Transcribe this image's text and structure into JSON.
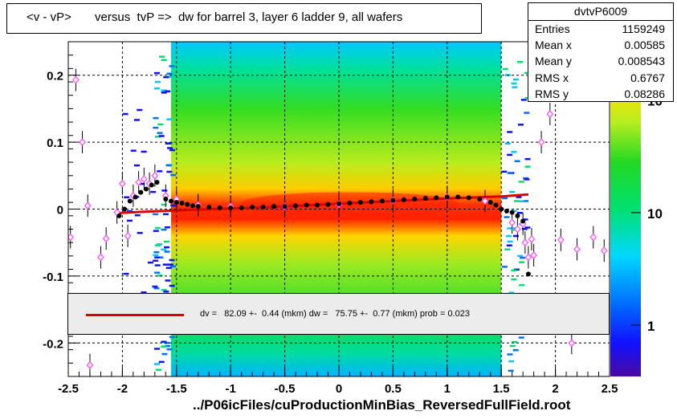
{
  "title": "<v - vP>       versus  tvP =>  dw for barrel 3, layer 6 ladder 9, all wafers",
  "file_label": "../P06icFiles/cuProductionMinBias_ReversedFullField.root",
  "stats": {
    "name": "dvtvP6009",
    "rows": [
      {
        "key": "Entries",
        "value": "1159249"
      },
      {
        "key": "Mean x",
        "value": "0.00585"
      },
      {
        "key": "Mean y",
        "value": "0.008543"
      },
      {
        "key": "RMS x",
        "value": "0.6767"
      },
      {
        "key": "RMS y",
        "value": "0.08286"
      }
    ]
  },
  "fit_text": "dv =   82.09 +-  0.44 (mkm) dw =   75.75 +-  0.77 (mkm) prob = 0.023",
  "colors": {
    "fit_line": "#dd0000",
    "profile": "#000000",
    "alt_profile": "#ff44ff"
  },
  "chart_data": {
    "type": "heatmap",
    "xlim": [
      -2.5,
      2.5
    ],
    "ylim": [
      -0.25,
      0.25
    ],
    "x_ticks": [
      -2.5,
      -2,
      -1.5,
      -1,
      -0.5,
      0,
      0.5,
      1,
      1.5,
      2,
      2.5
    ],
    "x_tick_labels": [
      "-2.5",
      "-2",
      "-1.5",
      "-1",
      "-0.5",
      "0",
      "0.5",
      "1",
      "1.5",
      "2",
      "2.5"
    ],
    "y_ticks": [
      -0.2,
      -0.1,
      0,
      0.1,
      0.2
    ],
    "y_tick_labels": [
      "-0.2",
      "-0.1",
      "0",
      "0.1",
      "0.2"
    ],
    "colorbar_labels": [
      {
        "label": "1",
        "value": 1
      },
      {
        "label": "10",
        "value": 10
      },
      {
        "label": "10",
        "value": 100
      }
    ],
    "grid": true,
    "band_x": [
      -1.55,
      1.5
    ],
    "profile": [
      [
        -2.03,
        -0.01
      ],
      [
        -1.98,
        0.0
      ],
      [
        -1.93,
        0.012
      ],
      [
        -1.88,
        0.018
      ],
      [
        -1.83,
        0.025
      ],
      [
        -1.78,
        0.03
      ],
      [
        -1.73,
        0.036
      ],
      [
        -1.68,
        0.04
      ],
      [
        -1.6,
        0.015
      ],
      [
        -1.55,
        0.012
      ],
      [
        -1.5,
        0.01
      ],
      [
        -1.45,
        0.009
      ],
      [
        -1.4,
        0.007
      ],
      [
        -1.35,
        0.005
      ],
      [
        -1.3,
        0.004
      ],
      [
        -1.2,
        0.003
      ],
      [
        -1.1,
        0.002
      ],
      [
        -1.0,
        0.002
      ],
      [
        -0.9,
        0.002
      ],
      [
        -0.8,
        0.003
      ],
      [
        -0.7,
        0.003
      ],
      [
        -0.6,
        0.004
      ],
      [
        -0.5,
        0.004
      ],
      [
        -0.4,
        0.005
      ],
      [
        -0.3,
        0.006
      ],
      [
        -0.2,
        0.006
      ],
      [
        -0.1,
        0.007
      ],
      [
        0.0,
        0.008
      ],
      [
        0.1,
        0.009
      ],
      [
        0.2,
        0.01
      ],
      [
        0.3,
        0.011
      ],
      [
        0.4,
        0.012
      ],
      [
        0.5,
        0.013
      ],
      [
        0.6,
        0.014
      ],
      [
        0.7,
        0.015
      ],
      [
        0.8,
        0.016
      ],
      [
        0.9,
        0.017
      ],
      [
        1.0,
        0.018
      ],
      [
        1.1,
        0.018
      ],
      [
        1.2,
        0.017
      ],
      [
        1.3,
        0.015
      ],
      [
        1.4,
        0.01
      ],
      [
        1.45,
        0.006
      ],
      [
        1.5,
        0.0
      ],
      [
        1.55,
        -0.003
      ],
      [
        1.6,
        -0.005
      ],
      [
        1.65,
        -0.01
      ],
      [
        1.7,
        -0.018
      ],
      [
        1.75,
        -0.097
      ]
    ],
    "alt_profile": [
      [
        -2.48,
        -0.042
      ],
      [
        -2.43,
        0.193
      ],
      [
        -2.37,
        0.1
      ],
      [
        -2.32,
        0.005
      ],
      [
        -2.3,
        -0.233
      ],
      [
        -2.2,
        -0.072
      ],
      [
        -2.15,
        -0.044
      ],
      [
        -2.05,
        -0.005
      ],
      [
        -2.0,
        0.038
      ],
      [
        -1.95,
        -0.04
      ],
      [
        -1.9,
        0.02
      ],
      [
        -1.85,
        0.04
      ],
      [
        -1.8,
        0.045
      ],
      [
        -1.75,
        0.038
      ],
      [
        -1.7,
        0.05
      ],
      [
        -1.6,
        0.02
      ],
      [
        -1.5,
        0.015
      ],
      [
        -1.3,
        0.006
      ],
      [
        -1.0,
        0.004
      ],
      [
        -0.5,
        0.004
      ],
      [
        0.0,
        0.007
      ],
      [
        0.5,
        0.013
      ],
      [
        1.0,
        0.018
      ],
      [
        1.35,
        0.012
      ],
      [
        1.6,
        -0.02
      ],
      [
        1.65,
        -0.03
      ],
      [
        1.7,
        -0.022
      ],
      [
        1.72,
        -0.05
      ],
      [
        1.75,
        -0.072
      ],
      [
        1.78,
        -0.045
      ],
      [
        1.8,
        -0.069
      ],
      [
        1.87,
        0.1
      ],
      [
        1.95,
        0.142
      ],
      [
        2.05,
        -0.046
      ],
      [
        2.15,
        -0.2
      ],
      [
        2.2,
        -0.06
      ],
      [
        2.35,
        -0.042
      ],
      [
        2.45,
        -0.062
      ]
    ],
    "fit_curve": [
      [
        -2.05,
        -0.006
      ],
      [
        -1.8,
        -0.004
      ],
      [
        -1.5,
        -0.002
      ],
      [
        -1.0,
        0.001
      ],
      [
        -0.5,
        0.004
      ],
      [
        0.0,
        0.008
      ],
      [
        0.5,
        0.012
      ],
      [
        1.0,
        0.016
      ],
      [
        1.5,
        0.019
      ],
      [
        1.75,
        0.022
      ]
    ]
  }
}
